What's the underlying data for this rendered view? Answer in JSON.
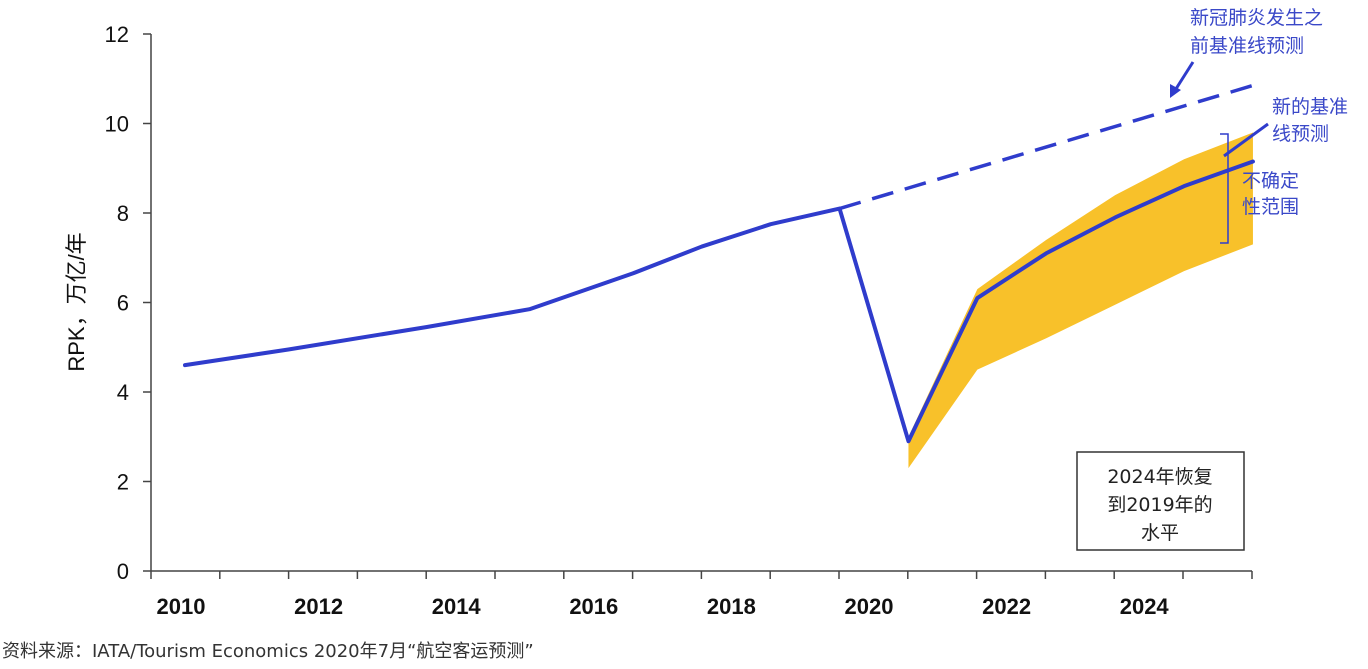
{
  "chart_data": {
    "type": "line",
    "ylabel": "RPK，万亿/年",
    "ylim": [
      0,
      12
    ],
    "yticks": [
      0,
      2,
      4,
      6,
      8,
      10,
      12
    ],
    "xlim": [
      2009.5,
      2025.5
    ],
    "xticks": [
      2010,
      2012,
      2014,
      2016,
      2018,
      2020,
      2022,
      2024
    ],
    "xtick_labels": [
      "2010",
      "2012",
      "2014",
      "2016",
      "2018",
      "2020",
      "2022",
      "2024"
    ],
    "series": [
      {
        "name": "新的基准线预测",
        "style": "solid",
        "color": "#2f3ccc",
        "x": [
          2009.5,
          2011,
          2013,
          2014.5,
          2016,
          2017,
          2018,
          2019,
          2020,
          2021,
          2022,
          2023,
          2024,
          2025
        ],
        "y": [
          4.6,
          4.95,
          5.45,
          5.85,
          6.65,
          7.25,
          7.75,
          8.1,
          2.9,
          6.1,
          7.1,
          7.9,
          8.6,
          9.15
        ]
      },
      {
        "name": "新冠肺炎发生之前基准线预测",
        "style": "dashed",
        "color": "#2f3ccc",
        "x": [
          2019,
          2025
        ],
        "y": [
          8.1,
          10.85
        ]
      }
    ],
    "band": {
      "name": "不确定性范围",
      "color": "#f8c12a",
      "x": [
        2020,
        2021,
        2022,
        2023,
        2024,
        2025
      ],
      "upper": [
        3.0,
        6.3,
        7.4,
        8.4,
        9.2,
        9.8
      ],
      "lower": [
        2.3,
        4.5,
        5.2,
        5.95,
        6.7,
        7.3
      ]
    }
  },
  "annotations": {
    "pre_covid_line1": "新冠肺炎发生之",
    "pre_covid_line2": "前基准线预测",
    "new_baseline_line1": "新的基准",
    "new_baseline_line2": "线预测",
    "uncertainty_line1": "不确定",
    "uncertainty_line2": "性范围",
    "recovery_line1": "2024年恢复",
    "recovery_line2": "到2019年的",
    "recovery_line3": "水平"
  },
  "source": "资料来源：IATA/Tourism Economics 2020年7月“航空客运预测”"
}
